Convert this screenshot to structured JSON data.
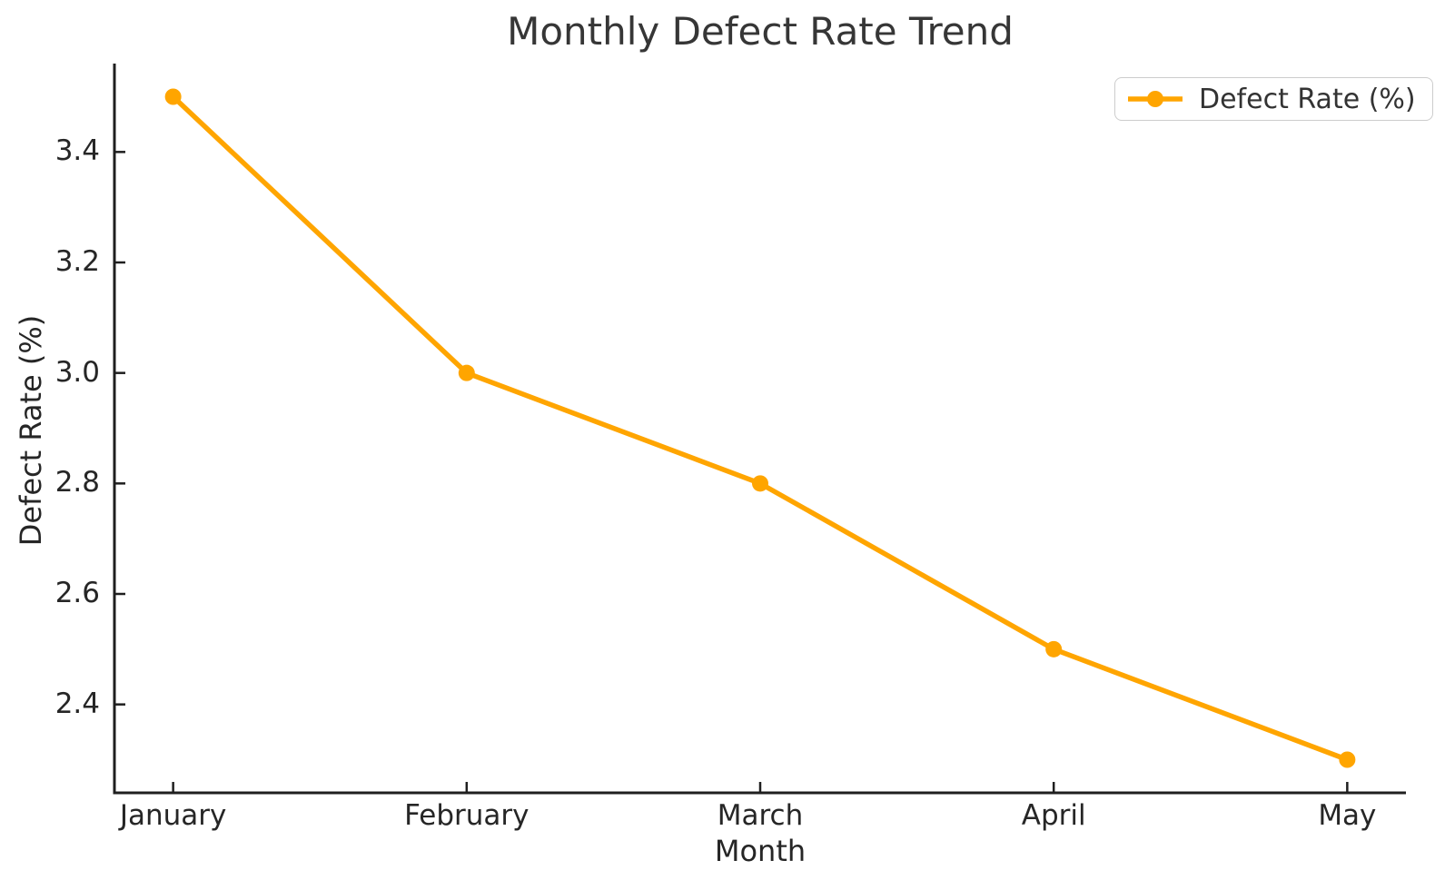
{
  "chart_data": {
    "type": "line",
    "title": "Monthly Defect Rate Trend",
    "xlabel": "Month",
    "ylabel": "Defect Rate (%)",
    "categories": [
      "January",
      "February",
      "March",
      "April",
      "May"
    ],
    "series": [
      {
        "name": "Defect Rate (%)",
        "values": [
          3.5,
          3.0,
          2.8,
          2.5,
          2.3
        ]
      }
    ],
    "yticks": [
      2.4,
      2.6,
      2.8,
      3.0,
      3.2,
      3.4
    ],
    "ytick_decimals": 1,
    "ylim": [
      2.24,
      3.56
    ],
    "xlim": [
      -0.2,
      4.2
    ],
    "grid": false,
    "legend_position": "upper right"
  },
  "colors": {
    "line": "#FFA500",
    "marker": "#FFA500",
    "axis": "#1f1f1f",
    "tick_text": "#262626",
    "title_text": "#363636",
    "legend_border": "#cccccc",
    "background": "#ffffff"
  }
}
